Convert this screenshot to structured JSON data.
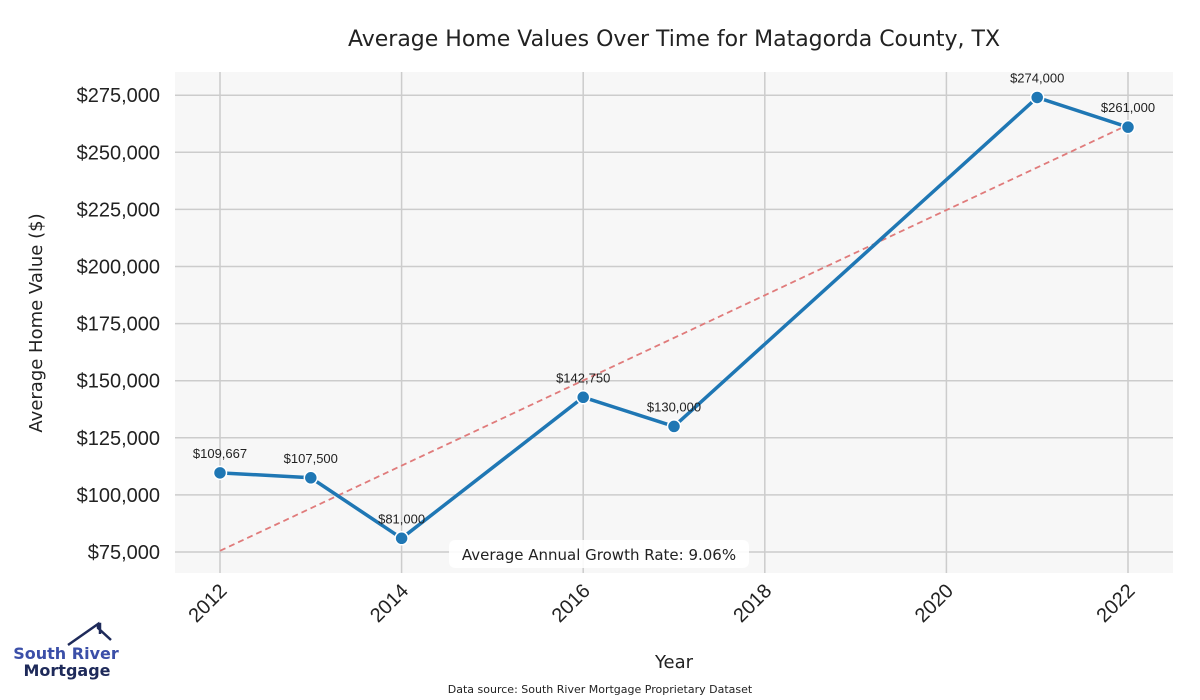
{
  "chart_data": {
    "type": "line",
    "title": "Average Home Values Over Time for Matagorda County, TX",
    "xlabel": "Year",
    "ylabel": "Average Home Value ($)",
    "x": [
      2012,
      2013,
      2014,
      2016,
      2017,
      2021,
      2022
    ],
    "series": [
      {
        "name": "Average Home Value",
        "values": [
          109667,
          107500,
          81000,
          142750,
          130000,
          274000,
          261000
        ],
        "color": "#1f77b4"
      }
    ],
    "data_labels": [
      "$109,667",
      "$107,500",
      "$81,000",
      "$142,750",
      "$130,000",
      "$274,000",
      "$261,000"
    ],
    "trend_line": {
      "name": "Trend",
      "x": [
        2012,
        2022
      ],
      "values": [
        75500,
        262000
      ],
      "color": "#e07b7b",
      "style": "dashed"
    },
    "xticks": [
      2012,
      2014,
      2016,
      2018,
      2020,
      2022
    ],
    "xtick_labels": [
      "2012",
      "2014",
      "2016",
      "2018",
      "2020",
      "2022"
    ],
    "yticks": [
      75000,
      100000,
      125000,
      150000,
      175000,
      200000,
      225000,
      250000,
      275000
    ],
    "ytick_labels": [
      "$75,000",
      "$100,000",
      "$125,000",
      "$150,000",
      "$175,000",
      "$200,000",
      "$225,000",
      "$250,000",
      "$275,000"
    ],
    "xlim": [
      2011.5,
      2022.5
    ],
    "ylim": [
      65000,
      285000
    ],
    "grid": true,
    "annotation": "Average Annual Growth Rate: 9.06%"
  },
  "logo": {
    "line1": "South River",
    "line2": "Mortgage"
  },
  "source": "Data source: South River Mortgage Proprietary Dataset"
}
